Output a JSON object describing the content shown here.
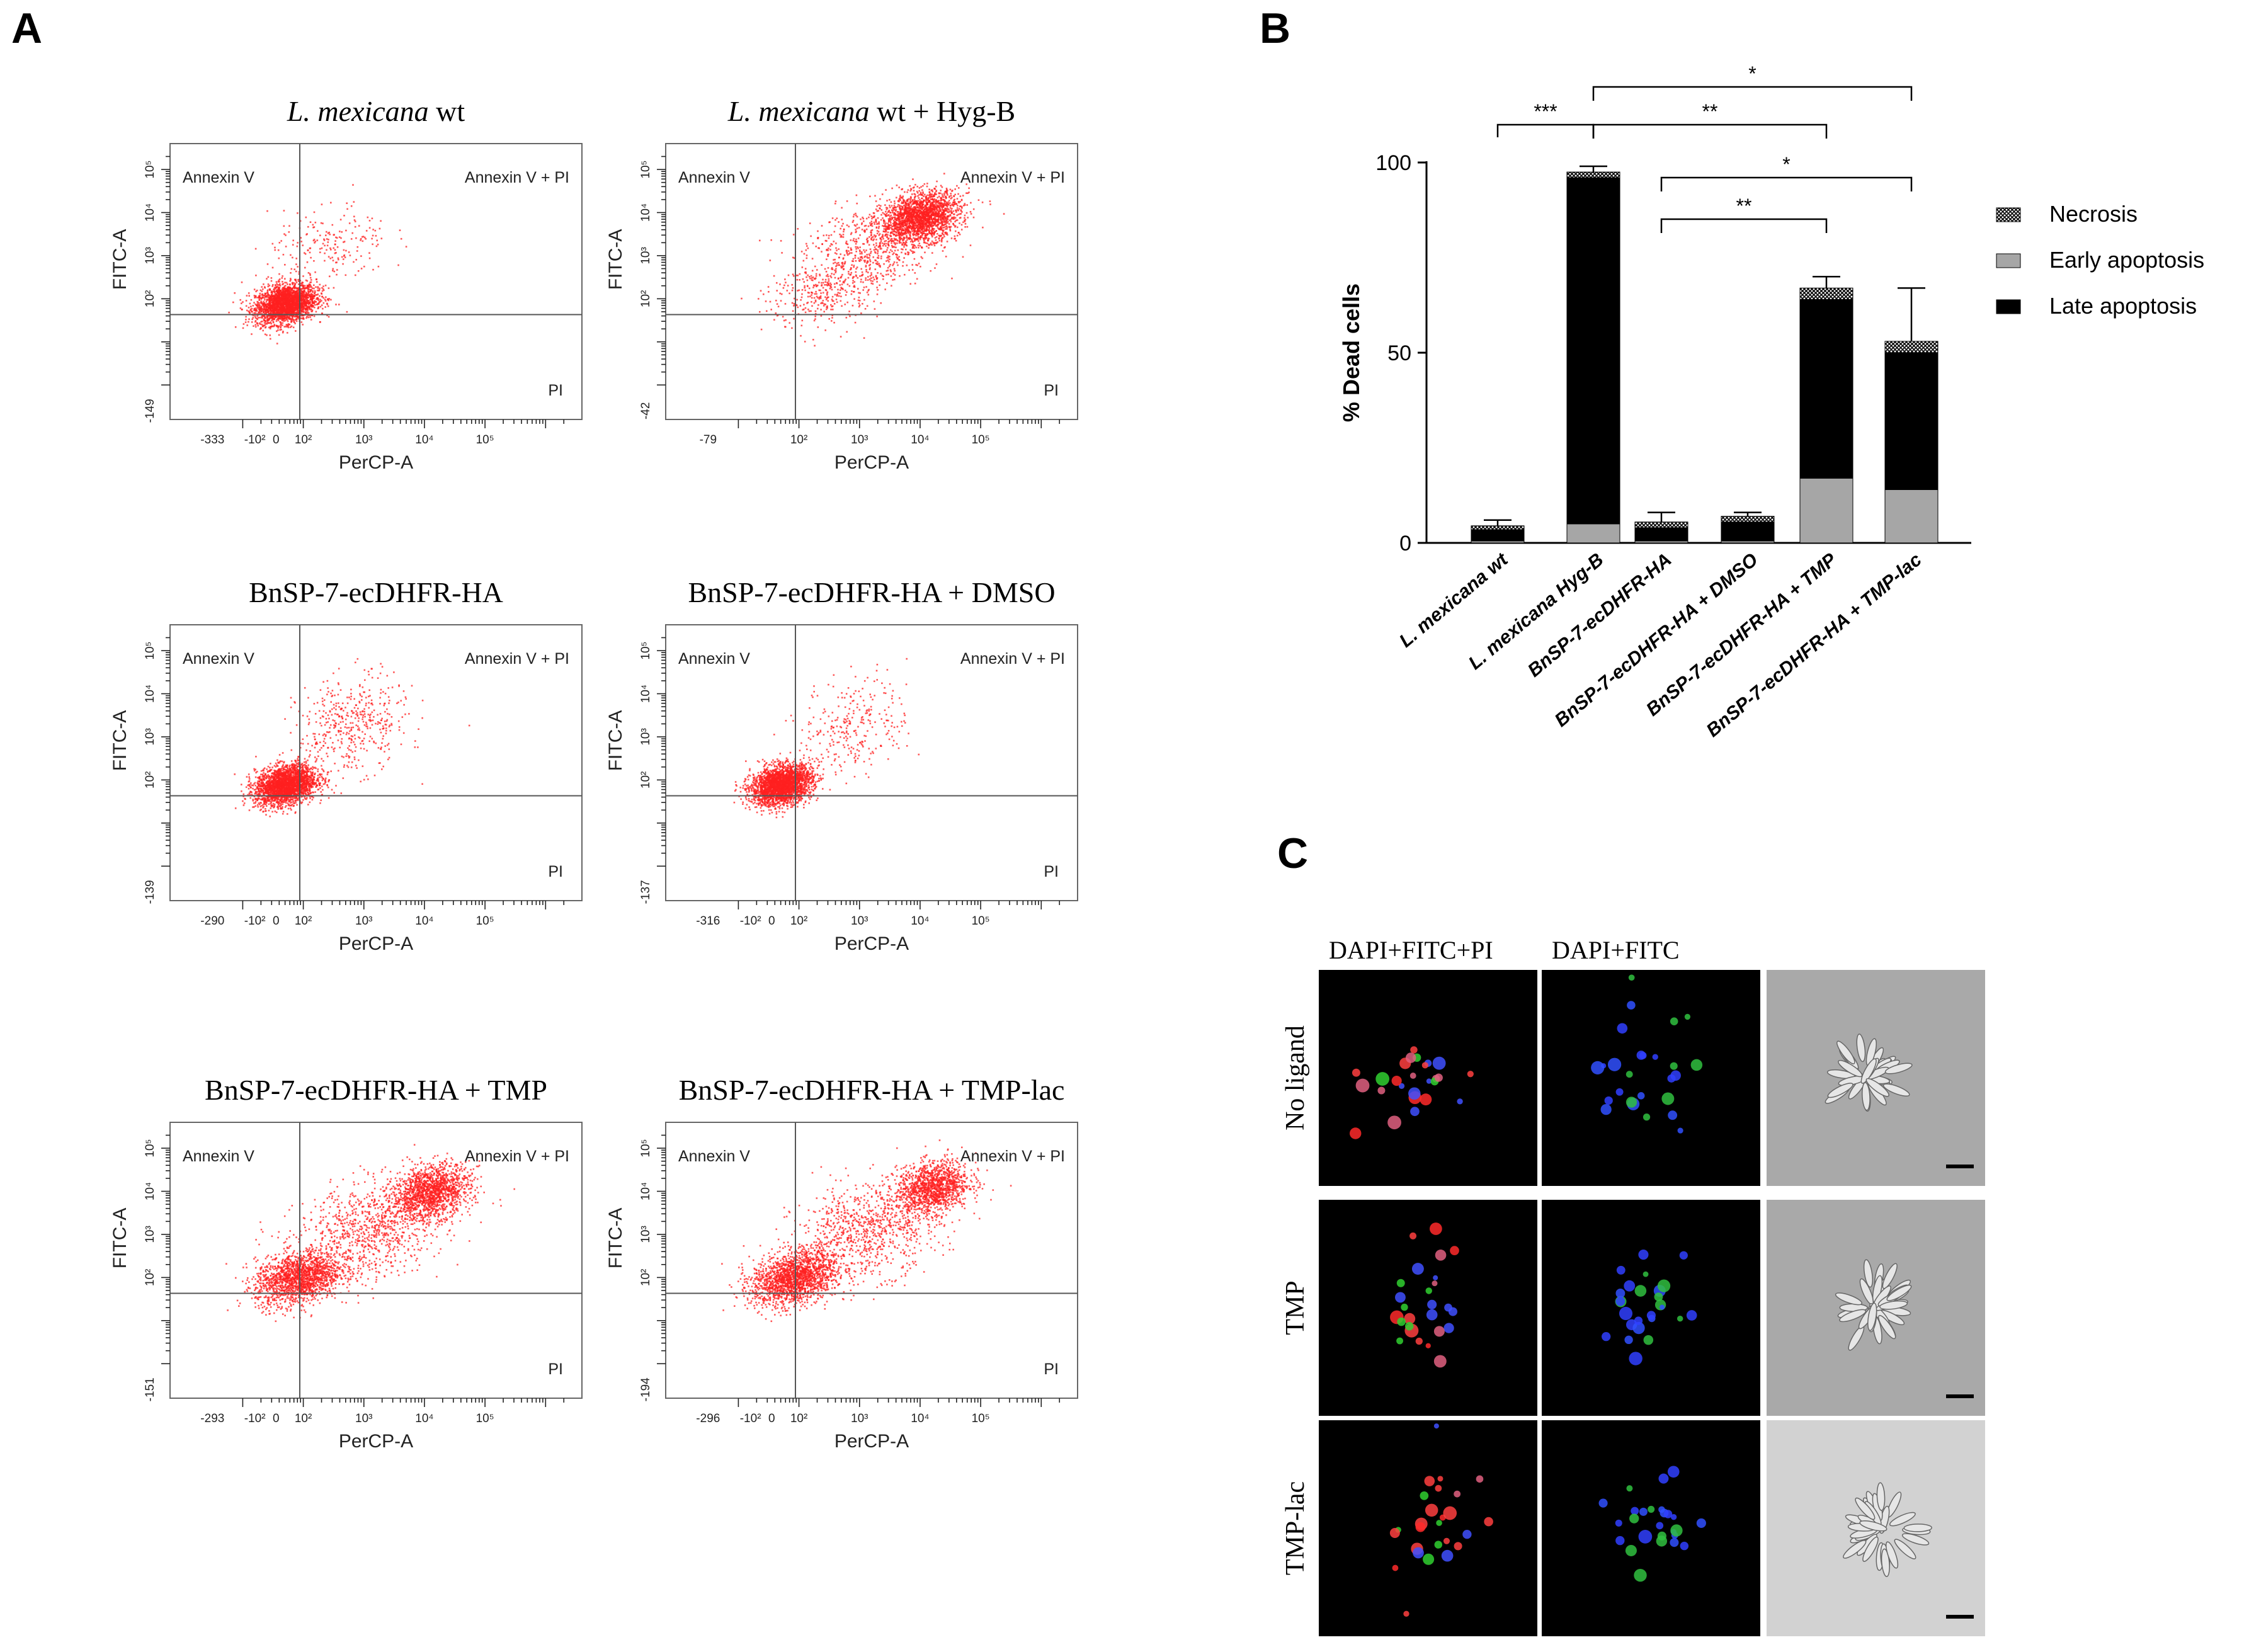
{
  "panel_labels": {
    "a": "A",
    "b": "B",
    "c": "C"
  },
  "chart_data": [
    {
      "type": "scatter",
      "title": "L. mexicana wt",
      "title_italic": "L. mexicana",
      "title_rest": "wt",
      "xlabel": "PerCP-A",
      "ylabel": "FITC-A",
      "x_ticks": [
        "-333",
        "-10²",
        "0",
        "10²",
        "10³",
        "10⁴",
        "10⁵"
      ],
      "y_ticks": [
        "-149",
        "10²",
        "10³",
        "10⁴",
        "10⁵"
      ],
      "quadrants": [
        "Annexin V",
        "Annexin V + PI",
        "PI"
      ],
      "clusters": [
        {
          "cx": 0.7,
          "cy": 1.9,
          "sx": 0.25,
          "sy": 0.22,
          "n": 2600
        },
        {
          "cx": 1.4,
          "cy": 3.2,
          "sx": 0.5,
          "sy": 0.5,
          "n": 220
        }
      ]
    },
    {
      "type": "scatter",
      "title": "L. mexicana wt + Hyg-B",
      "title_italic": "L. mexicana",
      "title_rest": "wt + Hyg-B",
      "xlabel": "PerCP-A",
      "ylabel": "FITC-A",
      "x_ticks": [
        "-79",
        "10²",
        "10³",
        "10⁴",
        "10⁵"
      ],
      "y_ticks": [
        "-42",
        "10²",
        "10³",
        "10⁴",
        "10⁵"
      ],
      "quadrants": [
        "Annexin V",
        "Annexin V + PI",
        "PI"
      ],
      "clusters": [
        {
          "cx": 3.0,
          "cy": 3.9,
          "sx": 0.32,
          "sy": 0.28,
          "n": 2100
        },
        {
          "cx": 2.2,
          "cy": 3.2,
          "sx": 0.55,
          "sy": 0.5,
          "n": 600
        },
        {
          "cx": 1.4,
          "cy": 2.2,
          "sx": 0.45,
          "sy": 0.45,
          "n": 350
        }
      ]
    },
    {
      "type": "scatter",
      "title": "BnSP-7-ecDHFR-HA",
      "title_italic": "",
      "title_rest": "BnSP-7-ecDHFR-HA",
      "xlabel": "PerCP-A",
      "ylabel": "FITC-A",
      "x_ticks": [
        "-290",
        "-10²",
        "0",
        "10²",
        "10³",
        "10⁴",
        "10⁵"
      ],
      "y_ticks": [
        "-139",
        "10²",
        "10³",
        "10⁴",
        "10⁵"
      ],
      "quadrants": [
        "Annexin V",
        "Annexin V + PI",
        "PI"
      ],
      "clusters": [
        {
          "cx": 0.7,
          "cy": 1.9,
          "sx": 0.25,
          "sy": 0.22,
          "n": 2600
        },
        {
          "cx": 1.8,
          "cy": 3.3,
          "sx": 0.45,
          "sy": 0.55,
          "n": 450
        }
      ]
    },
    {
      "type": "scatter",
      "title": "BnSP-7-ecDHFR-HA + DMSO",
      "title_italic": "",
      "title_rest": "BnSP-7-ecDHFR-HA + DMSO",
      "xlabel": "PerCP-A",
      "ylabel": "FITC-A",
      "x_ticks": [
        "-316",
        "-10²",
        "0",
        "10²",
        "10³",
        "10⁴",
        "10⁵"
      ],
      "y_ticks": [
        "-137",
        "10²",
        "10³",
        "10⁴",
        "10⁵"
      ],
      "quadrants": [
        "Annexin V",
        "Annexin V + PI",
        "PI"
      ],
      "clusters": [
        {
          "cx": 0.7,
          "cy": 1.9,
          "sx": 0.25,
          "sy": 0.22,
          "n": 2600
        },
        {
          "cx": 1.9,
          "cy": 3.3,
          "sx": 0.45,
          "sy": 0.55,
          "n": 280
        }
      ]
    },
    {
      "type": "scatter",
      "title": "BnSP-7-ecDHFR-HA + TMP",
      "title_italic": "",
      "title_rest": "BnSP-7-ecDHFR-HA + TMP",
      "xlabel": "PerCP-A",
      "ylabel": "FITC-A",
      "x_ticks": [
        "-293",
        "-10²",
        "0",
        "10²",
        "10³",
        "10⁴",
        "10⁵"
      ],
      "y_ticks": [
        "-151",
        "10²",
        "10³",
        "10⁴",
        "10⁵"
      ],
      "quadrants": [
        "Annexin V",
        "Annexin V + PI",
        "PI"
      ],
      "clusters": [
        {
          "cx": 0.9,
          "cy": 2.0,
          "sx": 0.35,
          "sy": 0.3,
          "n": 1700
        },
        {
          "cx": 3.1,
          "cy": 4.0,
          "sx": 0.32,
          "sy": 0.3,
          "n": 1500
        },
        {
          "cx": 2.1,
          "cy": 3.1,
          "sx": 0.6,
          "sy": 0.55,
          "n": 900
        }
      ]
    },
    {
      "type": "scatter",
      "title": "BnSP-7-ecDHFR-HA + TMP-lac",
      "title_italic": "",
      "title_rest": "BnSP-7-ecDHFR-HA + TMP-lac",
      "xlabel": "PerCP-A",
      "ylabel": "FITC-A",
      "x_ticks": [
        "-296",
        "-10²",
        "0",
        "10²",
        "10³",
        "10⁴",
        "10⁵"
      ],
      "y_ticks": [
        "-194",
        "10²",
        "10³",
        "10⁴",
        "10⁵"
      ],
      "quadrants": [
        "Annexin V",
        "Annexin V + PI",
        "PI"
      ],
      "clusters": [
        {
          "cx": 0.9,
          "cy": 2.0,
          "sx": 0.35,
          "sy": 0.3,
          "n": 1800
        },
        {
          "cx": 3.2,
          "cy": 4.1,
          "sx": 0.3,
          "sy": 0.3,
          "n": 1300
        },
        {
          "cx": 2.1,
          "cy": 3.1,
          "sx": 0.6,
          "sy": 0.55,
          "n": 900
        }
      ]
    },
    {
      "type": "bar",
      "stacked": true,
      "ylabel": "% Dead cells",
      "ylim": [
        0,
        100
      ],
      "y_ticks": [
        "0",
        "50",
        "100"
      ],
      "categories": [
        "L. mexicana wt",
        "L. mexicana Hyg-B",
        "BnSP-7-ecDHFR-HA",
        "BnSP-7-ecDHFR-HA + DMSO",
        "BnSP-7-ecDHFR-HA + TMP",
        "BnSP-7-ecDHFR-HA + TMP-lac"
      ],
      "category_parts": [
        {
          "italic": "L. mexicana",
          "rest": " wt"
        },
        {
          "italic": "L. mexicana",
          "rest": " Hyg-B"
        },
        {
          "italic": "",
          "rest": "BnSP-7-ecDHFR-HA"
        },
        {
          "italic": "",
          "rest": "BnSP-7-ecDHFR-HA + DMSO"
        },
        {
          "italic": "",
          "rest": "BnSP-7-ecDHFR-HA + TMP"
        },
        {
          "italic": "",
          "rest": "BnSP-7-ecDHFR-HA + TMP-lac"
        }
      ],
      "series": [
        {
          "name": "Early apoptosis",
          "color": "#a6a6a6",
          "values": [
            0.5,
            5,
            0.5,
            0.5,
            17,
            14
          ]
        },
        {
          "name": "Late apoptosis",
          "color": "#000000",
          "values": [
            3,
            91,
            3.5,
            5,
            47,
            36
          ]
        },
        {
          "name": "Necrosis",
          "color": "hatched",
          "values": [
            1,
            1.5,
            1.5,
            1.5,
            3,
            3
          ]
        }
      ],
      "error_bars": [
        1.5,
        1.5,
        2.5,
        1,
        3,
        14
      ],
      "legend": [
        "Necrosis",
        "Early apoptosis",
        "Late apoptosis"
      ],
      "significance": [
        {
          "from": 0,
          "to": 1,
          "label": "***"
        },
        {
          "from": 1,
          "to": 5,
          "label": "*"
        },
        {
          "from": 1,
          "to": 4,
          "label": "**"
        },
        {
          "from": 2,
          "to": 5,
          "label": "*"
        },
        {
          "from": 2,
          "to": 4,
          "label": "**"
        }
      ]
    }
  ],
  "microscopy": {
    "columns": [
      "DAPI+FITC+PI",
      "DAPI+FITC"
    ],
    "rows": [
      "No ligand",
      "TMP",
      "TMP-lac"
    ]
  }
}
